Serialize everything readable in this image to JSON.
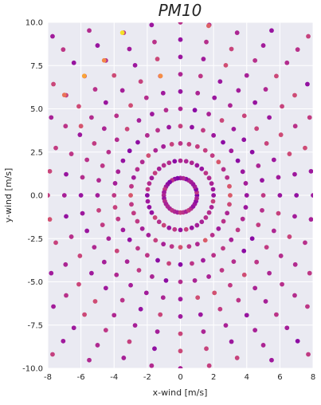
{
  "chart_data": {
    "type": "scatter",
    "title": "PM10",
    "title_base": "PM",
    "title_sub": "10",
    "xlabel": "x-wind [m/s]",
    "ylabel": "y-wind [m/s]",
    "xlim": [
      -8,
      8
    ],
    "ylim": [
      -10,
      10
    ],
    "xticks": [
      -8,
      -6,
      -4,
      -2,
      0,
      2,
      4,
      6,
      8
    ],
    "yticks": [
      -10.0,
      -7.5,
      -5.0,
      -2.5,
      0.0,
      2.5,
      5.0,
      7.5,
      10.0
    ],
    "xtick_labels": [
      "-8",
      "-6",
      "-4",
      "-2",
      "0",
      "2",
      "4",
      "6",
      "8"
    ],
    "ytick_labels": [
      "-10.0",
      "-7.5",
      "-5.0",
      "-2.5",
      "0.0",
      "2.5",
      "5.0",
      "7.5",
      "10.0"
    ],
    "grid": true,
    "background_color": "#eaeaf2",
    "grid_color": "#ffffff",
    "colormap": "plasma",
    "colormap_colors": [
      "#4b0297",
      "#7e03a8",
      "#a01a9c",
      "#bc3587",
      "#d5546e",
      "#ea7457",
      "#f89540",
      "#fcbb2c",
      "#f0f921"
    ],
    "rings": [
      {
        "radius": 1.0,
        "count": 36,
        "value": 0.18
      },
      {
        "radius": 2.0,
        "count": 36,
        "value": 0.22
      },
      {
        "radius": 3.0,
        "count": 36,
        "value": 0.3
      },
      {
        "radius": 4.0,
        "count": 36,
        "value": 0.2
      },
      {
        "radius": 5.0,
        "count": 36,
        "value": 0.22
      },
      {
        "radius": 6.0,
        "count": 36,
        "value": 0.26
      },
      {
        "radius": 7.0,
        "count": 36,
        "value": 0.24
      },
      {
        "radius": 8.0,
        "count": 36,
        "value": 0.26
      },
      {
        "radius": 9.0,
        "count": 36,
        "value": 0.24
      },
      {
        "radius": 10.0,
        "count": 36,
        "value": 0.22
      },
      {
        "radius": 11.0,
        "count": 36,
        "value": 0.2
      },
      {
        "radius": 12.0,
        "count": 36,
        "value": 0.2
      },
      {
        "radius": 13.0,
        "count": 36,
        "value": 0.18
      }
    ],
    "highlight_points": [
      {
        "x": -3.5,
        "y": 9.4,
        "value": 0.95
      },
      {
        "x": -4.6,
        "y": 7.8,
        "value": 0.7
      },
      {
        "x": -5.8,
        "y": 6.9,
        "value": 0.8
      },
      {
        "x": -1.2,
        "y": 6.9,
        "value": 0.72
      },
      {
        "x": -7.0,
        "y": 5.8,
        "value": 0.62
      },
      {
        "x": 1.7,
        "y": 9.8,
        "value": 0.55
      },
      {
        "x": -6.0,
        "y": 4.0,
        "value": 0.5
      }
    ]
  }
}
